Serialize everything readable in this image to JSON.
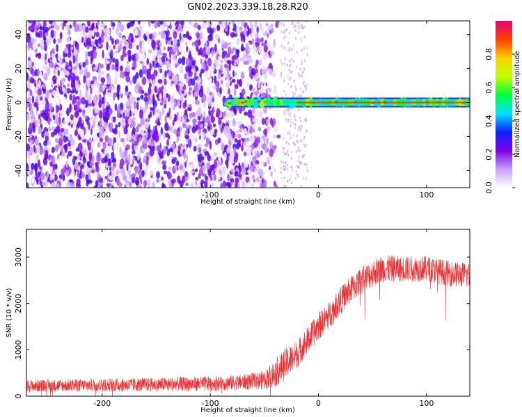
{
  "title": "GN02.2023.339.18.28.R20",
  "charts": [
    {
      "type": "heatmap",
      "xlabel": "Height of straight line (km)",
      "ylabel": "Frequency (Hz)",
      "xlim": [
        -270,
        140
      ],
      "ylim": [
        -50,
        48
      ],
      "xticks": [
        -200,
        -100,
        0,
        100
      ],
      "yticks": [
        -40,
        -20,
        0,
        20,
        40
      ],
      "grid": false,
      "colorbar": {
        "label": "Normalized spectral amplitude",
        "range": [
          0,
          1
        ],
        "ticks": [
          0.0,
          0.2,
          0.4,
          0.6,
          0.8
        ],
        "tick_labels": [
          "0.0",
          "0.2",
          "0.4",
          "0.6",
          "0.8"
        ],
        "stops": [
          "#ffffff",
          "#c8a0ff",
          "#7a00e6",
          "#1020ff",
          "#00e0ff",
          "#00ff40",
          "#c0ff00",
          "#ffd000",
          "#ff4000",
          "#e8007a"
        ]
      },
      "noise_region": {
        "x_start": -270,
        "x_end": -50,
        "fade_end": -35
      },
      "signal_line": {
        "x_start": -85,
        "x_end": 140,
        "frequency": 0
      }
    },
    {
      "type": "line",
      "xlabel": "Height of straight line (km)",
      "ylabel": "SNR (10 * v/v)",
      "xlim": [
        -270,
        140
      ],
      "ylim": [
        0,
        3600
      ],
      "xticks": [
        -200,
        -100,
        0,
        100
      ],
      "yticks": [
        0,
        1000,
        2000,
        3000
      ],
      "grid": false,
      "series_color": "#f03030",
      "series": [
        {
          "x": [
            -270,
            -200,
            -150,
            -100,
            -70,
            -50,
            -40,
            -30,
            -20,
            -10,
            0,
            10,
            20,
            30,
            40,
            50,
            60,
            80,
            100,
            120,
            140
          ],
          "y": [
            220,
            240,
            250,
            270,
            300,
            350,
            500,
            700,
            900,
            1200,
            1500,
            1750,
            2050,
            2300,
            2500,
            2650,
            2750,
            2750,
            2750,
            2650,
            2600
          ],
          "noise": [
            130,
            140,
            150,
            160,
            170,
            200,
            300,
            350,
            300,
            300,
            300,
            300,
            300,
            300,
            300,
            300,
            300,
            280,
            280,
            280,
            280
          ]
        }
      ]
    }
  ]
}
